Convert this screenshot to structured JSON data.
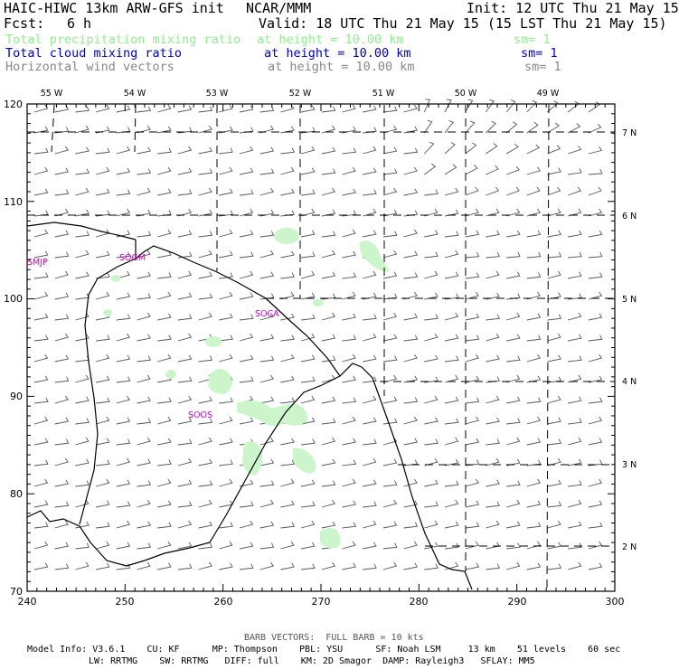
{
  "header": {
    "model_title": "HAIC-HIWC 13km ARW-GFS init",
    "org": "NCAR/MMM",
    "init_time": "Init: 12 UTC Thu 21 May 15",
    "fcst_label": "Fcst:",
    "fcst_value": "6 h",
    "valid_time": "Valid: 18 UTC Thu 21 May 15 (15 LST Thu 21 May 15)"
  },
  "fields": [
    {
      "name": "Total precipitation mixing ratio",
      "height": "at height = 10.00 km",
      "smooth": "sm= 1",
      "color": "#90ee90"
    },
    {
      "name": "Total cloud mixing ratio",
      "height": "at height = 10.00 km",
      "smooth": "sm= 1",
      "color": "#0000cd"
    },
    {
      "name": "Horizontal wind vectors",
      "height": "at height = 10.00 km",
      "smooth": "sm= 1",
      "color": "#888888"
    }
  ],
  "map": {
    "x_ticks": [
      "240",
      "250",
      "260",
      "270",
      "280",
      "290",
      "300"
    ],
    "y_ticks": [
      "70",
      "80",
      "90",
      "100",
      "110",
      "120"
    ],
    "lon_labels": [
      "55 W",
      "54 W",
      "53 W",
      "52 W",
      "51 W",
      "50 W",
      "49 W"
    ],
    "lat_labels": [
      "2 N",
      "3 N",
      "4 N",
      "5 N",
      "6 N",
      "7 N"
    ],
    "stations": [
      "SMJP",
      "SOGM",
      "SOCA",
      "SOOS"
    ],
    "coast_color": "#000000",
    "station_color": "#cc00cc",
    "barb_color": "#555555"
  },
  "footer": {
    "barb_note": "BARB VECTORS:  FULL BARB = 10 kts",
    "model_info_1": "Model Info: V3.6.1    CU: KF      MP: Thompson    PBL: YSU      SF: Noah LSM     13 km    51 levels    60 sec",
    "model_info_2": "LW: RRTMG    SW: RRTMG   DIFF: full    KM: 2D Smagor  DAMP: Rayleigh3   SFLAY: MM5"
  }
}
